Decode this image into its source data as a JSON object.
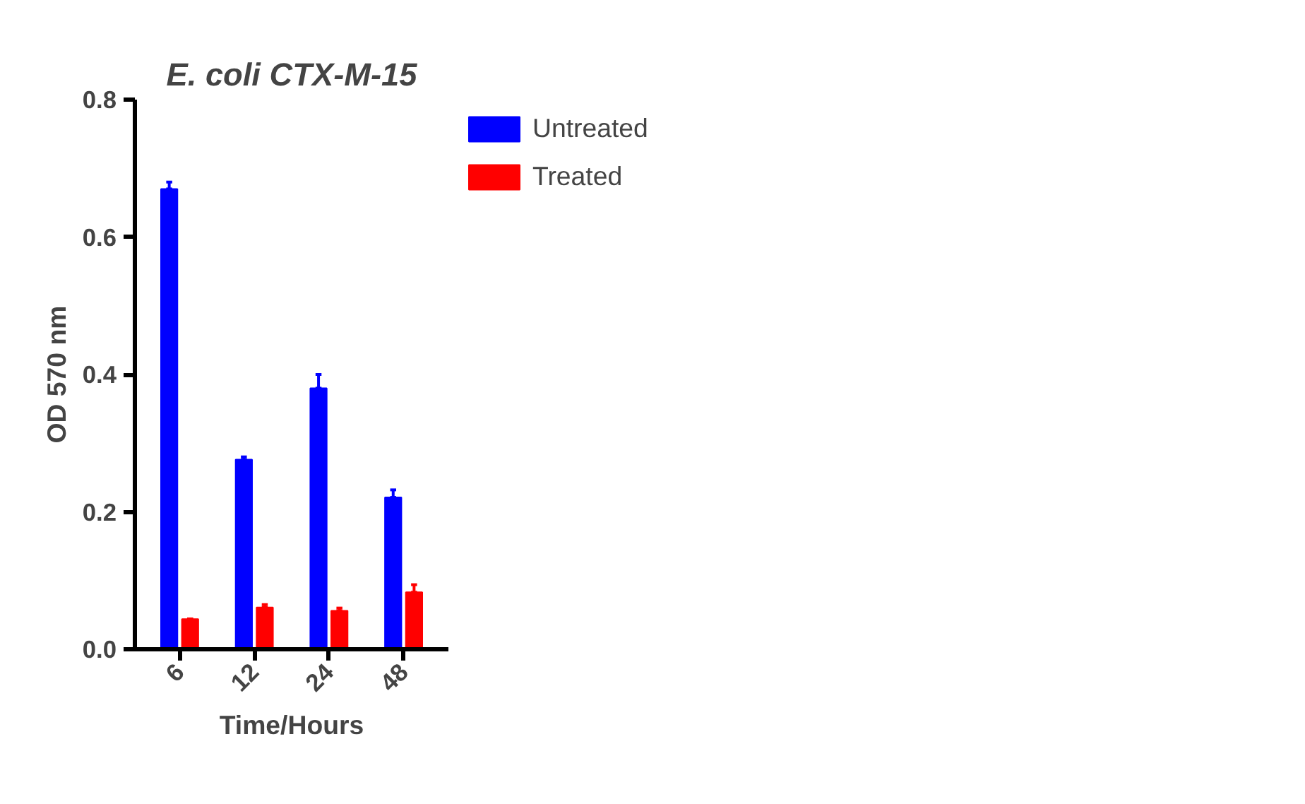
{
  "chart_data": {
    "type": "bar",
    "title": "E. coli CTX-M-15",
    "xlabel": "Time/Hours",
    "ylabel": "OD 570 nm",
    "categories": [
      "6",
      "12",
      "24",
      "48"
    ],
    "series": [
      {
        "name": "Untreated",
        "color": "#0000ff",
        "values": [
          0.67,
          0.276,
          0.38,
          0.221
        ],
        "errors": [
          [
            0.67,
            0.68
          ],
          [
            0.276,
            0.28
          ],
          [
            0.38,
            0.4
          ],
          [
            0.221,
            0.232
          ]
        ]
      },
      {
        "name": "Treated",
        "color": "#ff0000",
        "values": [
          0.044,
          0.061,
          0.056,
          0.083
        ],
        "errors": [
          [
            0.044,
            0.044
          ],
          [
            0.061,
            0.065
          ],
          [
            0.056,
            0.06
          ],
          [
            0.083,
            0.094
          ]
        ]
      }
    ],
    "ylim": [
      0,
      0.8
    ],
    "yticks": [
      {
        "value": 0,
        "label": "0.0"
      },
      0.2,
      0.4,
      0.6,
      0.8
    ],
    "grid": false,
    "legend": "top right"
  }
}
